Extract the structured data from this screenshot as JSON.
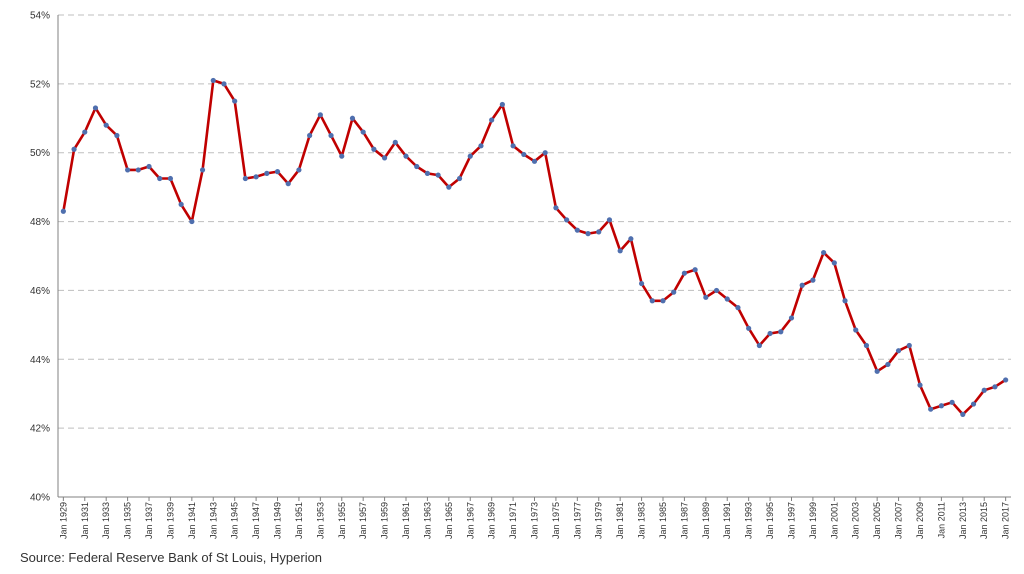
{
  "chart_data": {
    "type": "line",
    "x": [
      "Jan 1929",
      "Jan 1930",
      "Jan 1931",
      "Jan 1932",
      "Jan 1933",
      "Jan 1934",
      "Jan 1935",
      "Jan 1936",
      "Jan 1937",
      "Jan 1938",
      "Jan 1939",
      "Jan 1940",
      "Jan 1941",
      "Jan 1942",
      "Jan 1943",
      "Jan 1944",
      "Jan 1945",
      "Jan 1946",
      "Jan 1947",
      "Jan 1948",
      "Jan 1949",
      "Jan 1950",
      "Jan 1951",
      "Jan 1952",
      "Jan 1953",
      "Jan 1954",
      "Jan 1955",
      "Jan 1956",
      "Jan 1957",
      "Jan 1958",
      "Jan 1959",
      "Jan 1960",
      "Jan 1961",
      "Jan 1962",
      "Jan 1963",
      "Jan 1964",
      "Jan 1965",
      "Jan 1966",
      "Jan 1967",
      "Jan 1968",
      "Jan 1969",
      "Jan 1970",
      "Jan 1971",
      "Jan 1972",
      "Jan 1973",
      "Jan 1974",
      "Jan 1975",
      "Jan 1976",
      "Jan 1977",
      "Jan 1978",
      "Jan 1979",
      "Jan 1980",
      "Jan 1981",
      "Jan 1982",
      "Jan 1983",
      "Jan 1984",
      "Jan 1985",
      "Jan 1986",
      "Jan 1987",
      "Jan 1988",
      "Jan 1989",
      "Jan 1990",
      "Jan 1991",
      "Jan 1992",
      "Jan 1993",
      "Jan 1994",
      "Jan 1995",
      "Jan 1996",
      "Jan 1997",
      "Jan 1998",
      "Jan 1999",
      "Jan 2000",
      "Jan 2001",
      "Jan 2002",
      "Jan 2003",
      "Jan 2004",
      "Jan 2005",
      "Jan 2006",
      "Jan 2007",
      "Jan 2008",
      "Jan 2009",
      "Jan 2010",
      "Jan 2011",
      "Jan 2012",
      "Jan 2013",
      "Jan 2014",
      "Jan 2015",
      "Jan 2016",
      "Jan 2017"
    ],
    "x_tick_labels": [
      "Jan 1929",
      "Jan 1931",
      "Jan 1933",
      "Jan 1935",
      "Jan 1937",
      "Jan 1939",
      "Jan 1941",
      "Jan 1943",
      "Jan 1945",
      "Jan 1947",
      "Jan 1949",
      "Jan 1951",
      "Jan 1953",
      "Jan 1955",
      "Jan 1957",
      "Jan 1959",
      "Jan 1961",
      "Jan 1963",
      "Jan 1965",
      "Jan 1967",
      "Jan 1969",
      "Jan 1971",
      "Jan 1973",
      "Jan 1975",
      "Jan 1977",
      "Jan 1979",
      "Jan 1981",
      "Jan 1983",
      "Jan 1985",
      "Jan 1987",
      "Jan 1989",
      "Jan 1991",
      "Jan 1993",
      "Jan 1995",
      "Jan 1997",
      "Jan 1999",
      "Jan 2001",
      "Jan 2003",
      "Jan 2005",
      "Jan 2007",
      "Jan 2009",
      "Jan 2011",
      "Jan 2013",
      "Jan 2015",
      "Jan 2017"
    ],
    "series": [
      {
        "values": [
          48.3,
          50.1,
          50.6,
          51.3,
          50.8,
          50.5,
          49.5,
          49.5,
          49.6,
          49.25,
          49.25,
          48.5,
          48.0,
          49.5,
          52.1,
          52.0,
          51.5,
          49.25,
          49.3,
          49.4,
          49.45,
          49.1,
          49.5,
          50.5,
          51.1,
          50.5,
          49.9,
          51.0,
          50.6,
          50.1,
          49.85,
          50.3,
          49.9,
          49.6,
          49.4,
          49.35,
          49.0,
          49.25,
          49.9,
          50.2,
          50.95,
          51.4,
          50.2,
          49.95,
          49.75,
          50.0,
          48.4,
          48.05,
          47.75,
          47.65,
          47.7,
          48.05,
          47.15,
          47.5,
          46.2,
          45.7,
          45.7,
          45.95,
          46.5,
          46.6,
          45.8,
          46.0,
          45.75,
          45.5,
          44.9,
          44.4,
          44.75,
          44.8,
          45.2,
          46.15,
          46.3,
          47.1,
          46.8,
          45.7,
          44.85,
          44.4,
          43.65,
          43.85,
          44.25,
          44.4,
          43.25,
          42.55,
          42.65,
          42.75,
          42.4,
          42.7,
          43.1,
          43.2,
          43.4
        ],
        "color": "#c00000",
        "marker_color": "#4f6fae"
      }
    ],
    "y_tick_labels": [
      "40%",
      "42%",
      "44%",
      "46%",
      "48%",
      "50%",
      "52%",
      "54%"
    ],
    "ylim": [
      40,
      54
    ],
    "y_tick_step": 2,
    "grid": "horizontal dashed",
    "source": "Source: Federal Reserve Bank of St Louis, Hyperion"
  }
}
